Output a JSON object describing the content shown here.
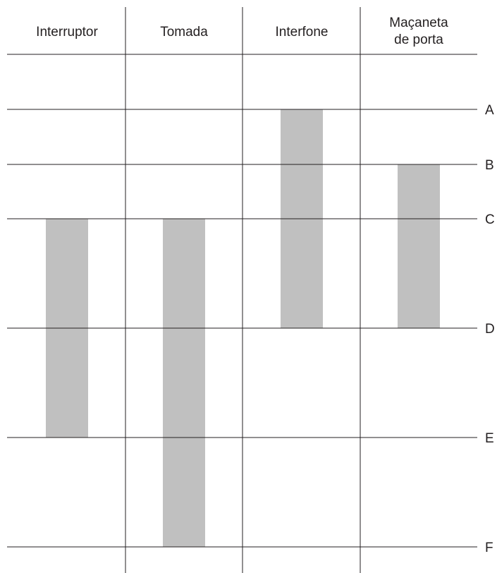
{
  "columns": [
    {
      "lines": [
        "Interruptor"
      ]
    },
    {
      "lines": [
        "Tomada"
      ]
    },
    {
      "lines": [
        "Interfone"
      ]
    },
    {
      "lines": [
        "Maçaneta",
        "de porta"
      ]
    }
  ],
  "levels": [
    "A",
    "B",
    "C",
    "D",
    "E",
    "F"
  ],
  "bars": [
    {
      "column": "Interruptor",
      "from": "C",
      "to": "E"
    },
    {
      "column": "Tomada",
      "from": "C",
      "to": "F"
    },
    {
      "column": "Interfone",
      "from": "A",
      "to": "D"
    },
    {
      "column": "Maçaneta de porta",
      "from": "B",
      "to": "D"
    }
  ],
  "colors": {
    "bar": "#c0c0c0",
    "line": "#231f20",
    "text": "#231f20"
  }
}
